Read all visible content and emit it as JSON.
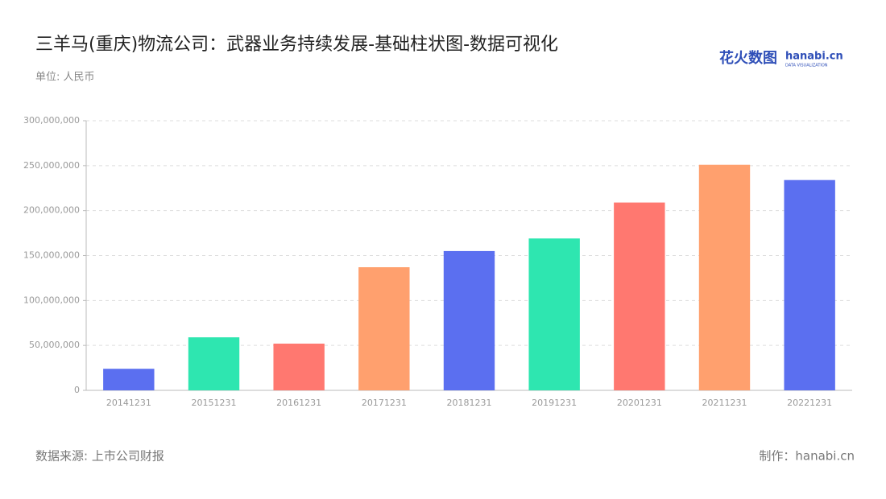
{
  "chart_data": {
    "type": "bar",
    "title": "三羊马(重庆)物流公司：武器业务持续发展-基础柱状图-数据可视化",
    "subtitle": "单位: 人民币",
    "source": "数据来源: 上市公司财报",
    "credit": "制作：hanabi.cn",
    "logo": {
      "brand": "花火数图",
      "site": "hanabi.cn",
      "tagline": "DATA VISUALIZATION"
    },
    "categories": [
      "20141231",
      "20151231",
      "20161231",
      "20171231",
      "20181231",
      "20191231",
      "20201231",
      "20211231",
      "20221231"
    ],
    "values": [
      24000000,
      59000000,
      52000000,
      137000000,
      155000000,
      169000000,
      209000000,
      251000000,
      234000000
    ],
    "colors": [
      "#5b6ff0",
      "#2ee6b0",
      "#ff7870",
      "#ffa06e",
      "#5b6ff0",
      "#2ee6b0",
      "#ff7870",
      "#ffa06e",
      "#5b6ff0"
    ],
    "ylim": [
      0,
      300000000
    ],
    "yticks": [
      0,
      {
        "value": 50000000,
        "label": "50,000,000"
      },
      {
        "value": 100000000,
        "label": "100,000,000"
      },
      {
        "value": 150000000,
        "label": "150,000,000"
      },
      {
        "value": 200000000,
        "label": "200,000,000"
      },
      {
        "value": 250000000,
        "label": "250,000,000"
      },
      {
        "value": 300000000,
        "label": "300,000,000"
      }
    ],
    "grid": true
  }
}
